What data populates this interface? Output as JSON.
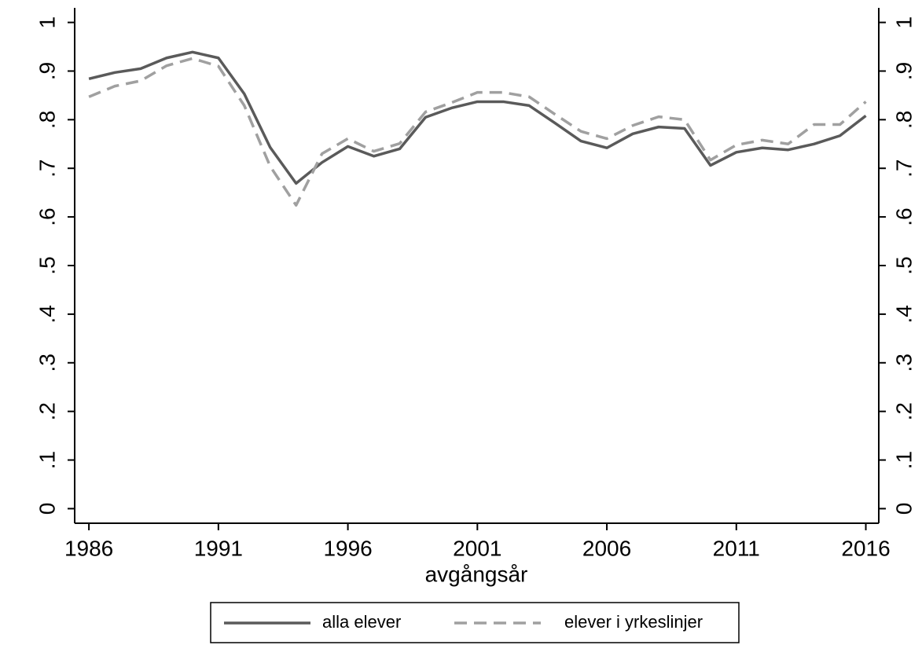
{
  "chart_data": {
    "type": "line",
    "xlabel": "avgångsår",
    "x": [
      1986,
      1987,
      1988,
      1989,
      1990,
      1991,
      1992,
      1993,
      1994,
      1995,
      1996,
      1997,
      1998,
      1999,
      2000,
      2001,
      2002,
      2003,
      2004,
      2005,
      2006,
      2007,
      2008,
      2009,
      2010,
      2011,
      2012,
      2013,
      2014,
      2015,
      2016
    ],
    "series": [
      {
        "name": "alla elever",
        "color": "#5a5a5a",
        "dash": "solid",
        "values": [
          0.884,
          0.897,
          0.905,
          0.927,
          0.939,
          0.927,
          0.853,
          0.743,
          0.669,
          0.712,
          0.745,
          0.725,
          0.74,
          0.805,
          0.824,
          0.837,
          0.837,
          0.829,
          0.793,
          0.756,
          0.742,
          0.771,
          0.785,
          0.782,
          0.706,
          0.733,
          0.742,
          0.738,
          0.75,
          0.767,
          0.808
        ]
      },
      {
        "name": "elever i yrkeslinjer",
        "color": "#a0a0a0",
        "dash": "dashed",
        "values": [
          0.847,
          0.869,
          0.88,
          0.911,
          0.926,
          0.91,
          0.829,
          0.704,
          0.624,
          0.73,
          0.761,
          0.735,
          0.751,
          0.816,
          0.835,
          0.856,
          0.856,
          0.847,
          0.811,
          0.776,
          0.761,
          0.788,
          0.806,
          0.8,
          0.717,
          0.748,
          0.758,
          0.75,
          0.79,
          0.79,
          0.837
        ]
      }
    ],
    "xlim": [
      1985.45,
      2016.5
    ],
    "xticks": [
      1986,
      1991,
      1996,
      2001,
      2006,
      2011,
      2016
    ],
    "ylim": [
      -0.03,
      1.03
    ],
    "yticks": [
      0,
      {
        "value": 0.1,
        "label": ".1"
      },
      {
        "value": 0.2,
        "label": ".2"
      },
      {
        "value": 0.3,
        "label": ".3"
      },
      {
        "value": 0.4,
        "label": ".4"
      },
      {
        "value": 0.5,
        "label": ".5"
      },
      {
        "value": 0.6,
        "label": ".6"
      },
      {
        "value": 0.7,
        "label": ".7"
      },
      {
        "value": 0.8,
        "label": ".8"
      },
      {
        "value": 0.9,
        "label": ".9"
      },
      1
    ],
    "y2lim": [
      -0.03,
      1.03
    ],
    "y2ticks": [
      0,
      {
        "value": 0.1,
        "label": ".1"
      },
      {
        "value": 0.2,
        "label": ".2"
      },
      {
        "value": 0.3,
        "label": ".3"
      },
      {
        "value": 0.4,
        "label": ".4"
      },
      {
        "value": 0.5,
        "label": ".5"
      },
      {
        "value": 0.6,
        "label": ".6"
      },
      {
        "value": 0.7,
        "label": ".7"
      },
      {
        "value": 0.8,
        "label": ".8"
      },
      {
        "value": 0.9,
        "label": ".9"
      },
      1
    ],
    "legend": "bottom"
  }
}
